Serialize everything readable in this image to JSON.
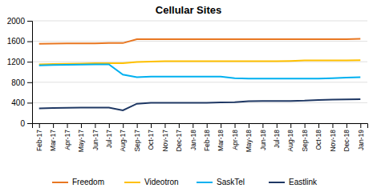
{
  "chart_data": {
    "type": "line",
    "title": "Cellular Sites",
    "categories": [
      "Feb-17",
      "Mar-17",
      "Apr-17",
      "May-17",
      "Jun-17",
      "Jul-17",
      "Aug-17",
      "Sep-17",
      "Oct-17",
      "Nov-17",
      "Dec-17",
      "Jan-18",
      "Feb-18",
      "Mar-18",
      "Apr-18",
      "May-18",
      "Jun-18",
      "Jul-18",
      "Aug-18",
      "Sep-18",
      "Oct-18",
      "Nov-18",
      "Dec-18",
      "Jan-19"
    ],
    "series": [
      {
        "name": "Freedom",
        "color": "#E87722",
        "values": [
          1550,
          1555,
          1560,
          1560,
          1560,
          1565,
          1565,
          1640,
          1640,
          1640,
          1640,
          1640,
          1640,
          1640,
          1640,
          1640,
          1640,
          1640,
          1640,
          1640,
          1640,
          1640,
          1640,
          1650
        ]
      },
      {
        "name": "Videotron",
        "color": "#FFC000",
        "values": [
          1150,
          1155,
          1160,
          1165,
          1170,
          1170,
          1170,
          1195,
          1205,
          1210,
          1210,
          1210,
          1210,
          1210,
          1210,
          1210,
          1210,
          1210,
          1215,
          1225,
          1225,
          1225,
          1225,
          1230
        ]
      },
      {
        "name": "SaskTel",
        "color": "#00B0F0",
        "values": [
          1130,
          1135,
          1140,
          1145,
          1150,
          1150,
          950,
          900,
          910,
          910,
          910,
          910,
          910,
          910,
          880,
          870,
          870,
          870,
          870,
          870,
          870,
          880,
          890,
          900
        ]
      },
      {
        "name": "Eastlink",
        "color": "#1F3864",
        "values": [
          290,
          295,
          300,
          305,
          305,
          305,
          250,
          380,
          400,
          400,
          400,
          400,
          400,
          405,
          410,
          430,
          435,
          435,
          435,
          440,
          455,
          460,
          465,
          470
        ]
      }
    ],
    "ylim": [
      0,
      2000
    ],
    "yticks": [
      0,
      400,
      800,
      1200,
      1600,
      2000
    ],
    "grid": true,
    "legend": "bottom"
  }
}
